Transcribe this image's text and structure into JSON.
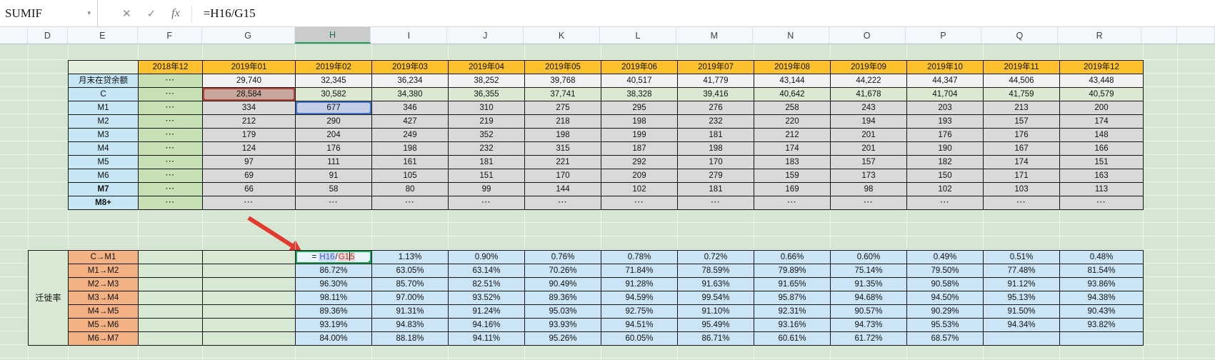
{
  "formula_bar": {
    "name_box_value": "SUMIF",
    "dropdown_icon": "▾",
    "cancel_label": "✕",
    "confirm_label": "✓",
    "fx_label": "fx",
    "formula": "=H16/G15"
  },
  "columns": {
    "letters": [
      "D",
      "E",
      "F",
      "G",
      "H",
      "I",
      "J",
      "K",
      "L",
      "M",
      "N",
      "O",
      "P",
      "Q",
      "R"
    ],
    "selected": "H"
  },
  "loan_table": {
    "months": [
      "2018年12",
      "2019年01",
      "2019年02",
      "2019年03",
      "2019年04",
      "2019年05",
      "2019年06",
      "2019年07",
      "2019年08",
      "2019年09",
      "2019年10",
      "2019年11",
      "2019年12"
    ],
    "rows": [
      {
        "label": "月末在贷余额",
        "values": [
          "···",
          "29,740",
          "32,345",
          "36,234",
          "38,252",
          "39,768",
          "40,517",
          "41,779",
          "43,144",
          "44,222",
          "44,347",
          "44,506",
          "43,448"
        ]
      },
      {
        "label": "C",
        "values": [
          "···",
          "28,584",
          "30,582",
          "34,380",
          "36,355",
          "37,741",
          "38,328",
          "39,416",
          "40,642",
          "41,678",
          "41,704",
          "41,759",
          "40,579"
        ]
      },
      {
        "label": "M1",
        "values": [
          "···",
          "334",
          "677",
          "346",
          "310",
          "275",
          "295",
          "276",
          "258",
          "243",
          "203",
          "213",
          "200"
        ]
      },
      {
        "label": "M2",
        "values": [
          "···",
          "212",
          "290",
          "427",
          "219",
          "218",
          "198",
          "232",
          "220",
          "194",
          "193",
          "157",
          "174"
        ]
      },
      {
        "label": "M3",
        "values": [
          "···",
          "179",
          "204",
          "249",
          "352",
          "198",
          "199",
          "181",
          "212",
          "201",
          "176",
          "176",
          "148"
        ]
      },
      {
        "label": "M4",
        "values": [
          "···",
          "124",
          "176",
          "198",
          "232",
          "315",
          "187",
          "198",
          "174",
          "201",
          "190",
          "167",
          "166"
        ]
      },
      {
        "label": "M5",
        "values": [
          "···",
          "97",
          "111",
          "161",
          "181",
          "221",
          "292",
          "170",
          "183",
          "157",
          "182",
          "174",
          "151"
        ]
      },
      {
        "label": "M6",
        "values": [
          "···",
          "69",
          "91",
          "105",
          "151",
          "170",
          "209",
          "279",
          "159",
          "173",
          "150",
          "171",
          "163"
        ]
      },
      {
        "label": "M7",
        "values": [
          "···",
          "66",
          "58",
          "80",
          "99",
          "144",
          "102",
          "181",
          "169",
          "98",
          "102",
          "103",
          "113"
        ]
      },
      {
        "label": "M8+",
        "values": [
          "···",
          "···",
          "···",
          "···",
          "···",
          "···",
          "···",
          "···",
          "···",
          "···",
          "···",
          "···",
          "···"
        ]
      }
    ],
    "bold_labels": [
      "M7",
      "M8+"
    ],
    "highlighted_refs": [
      {
        "cell": "G15",
        "row_label": "C",
        "month": "2019年01",
        "value": "28,584",
        "style": "red"
      },
      {
        "cell": "H16",
        "row_label": "M1",
        "month": "2019年02",
        "value": "677",
        "style": "blue"
      }
    ]
  },
  "migration_table": {
    "side_label": "迁徙率",
    "editing_cell": {
      "prefix": "= ",
      "ref1": "H16",
      "operator": "/",
      "ref2_before_caret": "G1",
      "ref2_after_caret": "5"
    },
    "rows": [
      {
        "label": "C→M1",
        "editing": true,
        "values": [
          "",
          "1.13%",
          "0.90%",
          "0.76%",
          "0.78%",
          "0.72%",
          "0.66%",
          "0.60%",
          "0.49%",
          "0.51%",
          "0.48%"
        ]
      },
      {
        "label": "M1→M2",
        "values": [
          "86.72%",
          "63.05%",
          "63.14%",
          "70.26%",
          "71.84%",
          "78.59%",
          "79.89%",
          "75.14%",
          "79.50%",
          "77.48%",
          "81.54%"
        ]
      },
      {
        "label": "M2→M3",
        "values": [
          "96.30%",
          "85.70%",
          "82.51%",
          "90.49%",
          "91.28%",
          "91.63%",
          "91.65%",
          "91.35%",
          "90.58%",
          "91.12%",
          "93.86%"
        ]
      },
      {
        "label": "M3→M4",
        "values": [
          "98.11%",
          "97.00%",
          "93.52%",
          "89.36%",
          "94.59%",
          "99.54%",
          "95.87%",
          "94.68%",
          "94.50%",
          "95.13%",
          "94.38%"
        ]
      },
      {
        "label": "M4→M5",
        "values": [
          "89.36%",
          "91.31%",
          "91.24%",
          "95.03%",
          "92.75%",
          "91.10%",
          "92.31%",
          "90.57%",
          "90.29%",
          "91.50%",
          "90.43%"
        ]
      },
      {
        "label": "M5→M6",
        "values": [
          "93.19%",
          "94.83%",
          "94.16%",
          "93.93%",
          "94.51%",
          "95.49%",
          "93.16%",
          "94.73%",
          "95.53%",
          "94.34%",
          "93.82%"
        ]
      },
      {
        "label": "M6→M7",
        "values": [
          "84.00%",
          "88.18%",
          "94.11%",
          "95.26%",
          "60.05%",
          "86.71%",
          "60.61%",
          "61.72%",
          "68.57%",
          "",
          ""
        ]
      }
    ]
  },
  "watermark": "CSDN @实力均衡prss",
  "colors": {
    "header_orange": "#fcc12c",
    "label_blue": "#c6e6f5",
    "dots_green": "#c6e0b4",
    "row_gray": "#d9d9d9",
    "row_light": "#f2f2f2",
    "row_green": "#dbe9d2",
    "migration_label_salmon": "#f4b183",
    "migration_value_blue": "#cbe5f6",
    "ref_red": "#b8433c",
    "ref_blue": "#4472c4",
    "editing_green": "#1ea55c",
    "arrow_red": "#e23a2e",
    "sheet_green": "#d5e7d3"
  }
}
